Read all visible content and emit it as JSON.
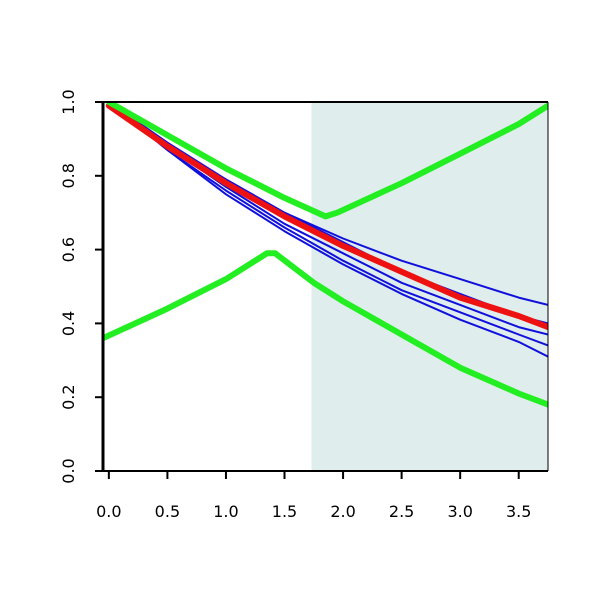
{
  "chart_data": {
    "type": "line",
    "title": "",
    "xlabel": "",
    "ylabel": "",
    "xlim": [
      -0.05,
      3.75
    ],
    "ylim": [
      0.0,
      1.0
    ],
    "x_ticks": [
      0.0,
      0.5,
      1.0,
      1.5,
      2.0,
      2.5,
      3.0,
      3.5
    ],
    "x_tick_labels": [
      "0.0",
      "0.5",
      "1.0",
      "1.5",
      "2.0",
      "2.5",
      "3.0",
      "3.5"
    ],
    "y_ticks": [
      0.0,
      0.2,
      0.4,
      0.6,
      0.8,
      1.0
    ],
    "y_tick_labels": [
      "0.0",
      "0.2",
      "0.4",
      "0.6",
      "0.8",
      "1.0"
    ],
    "shaded_region": {
      "x_start": 1.73,
      "x_end": 3.75,
      "color": "#e0eded"
    },
    "grid": false,
    "series": [
      {
        "role": "blue-1",
        "color": "#1010dd",
        "width": "thin",
        "x": [
          0.0,
          0.5,
          1.0,
          1.5,
          2.0,
          2.5,
          3.0,
          3.5,
          3.75
        ],
        "y": [
          1.0,
          0.87,
          0.75,
          0.65,
          0.56,
          0.48,
          0.41,
          0.35,
          0.31
        ]
      },
      {
        "role": "blue-2",
        "color": "#1010dd",
        "width": "thin",
        "x": [
          0.0,
          0.5,
          1.0,
          1.5,
          2.0,
          2.5,
          3.0,
          3.5,
          3.75
        ],
        "y": [
          1.0,
          0.87,
          0.76,
          0.66,
          0.57,
          0.49,
          0.43,
          0.37,
          0.34
        ]
      },
      {
        "role": "blue-3",
        "color": "#1010dd",
        "width": "thin",
        "x": [
          0.0,
          0.5,
          1.0,
          1.5,
          2.0,
          2.5,
          3.0,
          3.5,
          3.75
        ],
        "y": [
          1.0,
          0.88,
          0.77,
          0.67,
          0.59,
          0.51,
          0.45,
          0.39,
          0.37
        ]
      },
      {
        "role": "blue-4",
        "color": "#1010dd",
        "width": "thin",
        "x": [
          0.0,
          0.5,
          1.0,
          1.5,
          2.0,
          2.5,
          3.0,
          3.5,
          3.75
        ],
        "y": [
          1.0,
          0.89,
          0.79,
          0.7,
          0.62,
          0.54,
          0.48,
          0.42,
          0.4
        ]
      },
      {
        "role": "blue-5",
        "color": "#1010dd",
        "width": "thin",
        "x": [
          0.0,
          0.5,
          1.0,
          1.5,
          2.0,
          2.5,
          3.0,
          3.5,
          3.75
        ],
        "y": [
          0.99,
          0.88,
          0.79,
          0.7,
          0.63,
          0.57,
          0.52,
          0.47,
          0.45
        ]
      },
      {
        "role": "red-mean",
        "color": "#ee1111",
        "width": "thick",
        "x": [
          0.0,
          0.5,
          1.0,
          1.5,
          2.0,
          2.5,
          3.0,
          3.5,
          3.75
        ],
        "y": [
          0.99,
          0.88,
          0.78,
          0.69,
          0.61,
          0.54,
          0.47,
          0.42,
          0.39
        ]
      },
      {
        "role": "green-upper",
        "color": "#22ee22",
        "width": "thick",
        "x": [
          0.0,
          0.5,
          1.0,
          1.5,
          1.85,
          1.95,
          2.5,
          3.0,
          3.5,
          3.75
        ],
        "y": [
          1.0,
          0.91,
          0.82,
          0.74,
          0.69,
          0.7,
          0.78,
          0.86,
          0.94,
          0.99
        ]
      },
      {
        "role": "green-lower",
        "color": "#22ee22",
        "width": "thick",
        "x": [
          -0.05,
          0.5,
          1.0,
          1.35,
          1.42,
          1.75,
          2.0,
          2.5,
          3.0,
          3.5,
          3.75
        ],
        "y": [
          0.36,
          0.44,
          0.52,
          0.59,
          0.59,
          0.51,
          0.46,
          0.37,
          0.28,
          0.21,
          0.18
        ]
      }
    ]
  }
}
